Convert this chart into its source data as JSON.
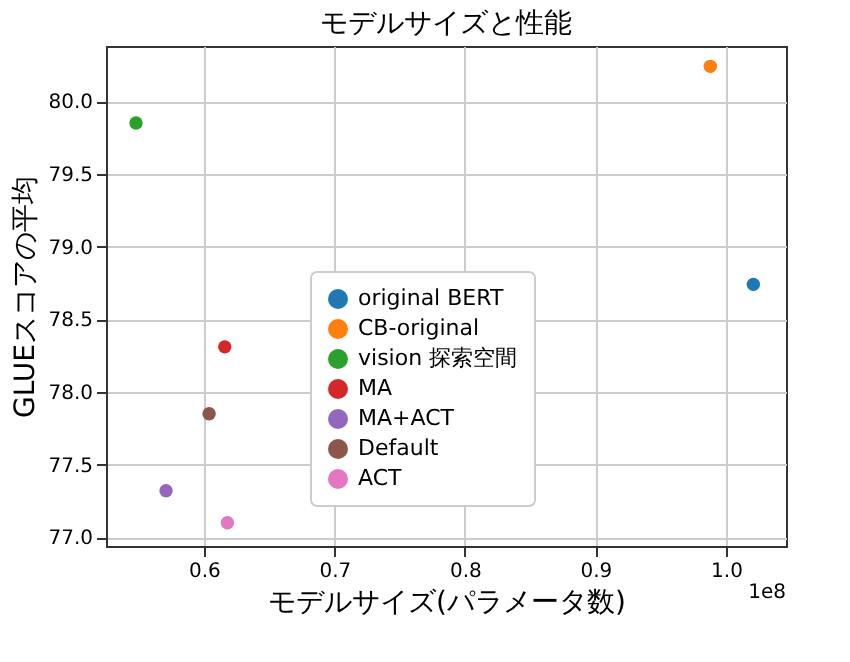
{
  "chart_data": {
    "type": "scatter",
    "title": "モデルサイズと性能",
    "xlabel": "モデルサイズ(パラメータ数)",
    "ylabel": "GLUEスコアの平均",
    "annotations": [
      "1e8"
    ],
    "xlim": [
      0.525,
      1.046
    ],
    "xticks": [
      0.6,
      0.7,
      0.8,
      0.9,
      {
        "value": 1,
        "label": "1.0"
      }
    ],
    "ylim": [
      76.94,
      80.38
    ],
    "yticks": [
      {
        "value": 77,
        "label": "77.0"
      },
      77.5,
      {
        "value": 78,
        "label": "78.0"
      },
      78.5,
      {
        "value": 79,
        "label": "79.0"
      },
      79.5,
      {
        "value": 80,
        "label": "80.0"
      }
    ],
    "grid": true,
    "legend": "bottom",
    "marker": "circle",
    "series": [
      {
        "name": "original BERT",
        "color": "#1f77b4",
        "x": [
          1.021
        ],
        "values": [
          78.74
        ]
      },
      {
        "name": "CB-original",
        "color": "#ff7f0e",
        "x": [
          0.988
        ],
        "values": [
          80.24
        ]
      },
      {
        "name": "vision 探索空間",
        "color": "#2ca02c",
        "x": [
          0.548
        ],
        "values": [
          79.85
        ]
      },
      {
        "name": "MA",
        "color": "#d62728",
        "x": [
          0.616
        ],
        "values": [
          78.31
        ]
      },
      {
        "name": "MA+ACT",
        "color": "#9467bd",
        "x": [
          0.571
        ],
        "values": [
          77.32
        ]
      },
      {
        "name": "Default",
        "color": "#8c564b",
        "x": [
          0.604
        ],
        "values": [
          77.85
        ]
      },
      {
        "name": "ACT",
        "color": "#e377c2",
        "x": [
          0.618
        ],
        "values": [
          77.1
        ]
      }
    ]
  }
}
